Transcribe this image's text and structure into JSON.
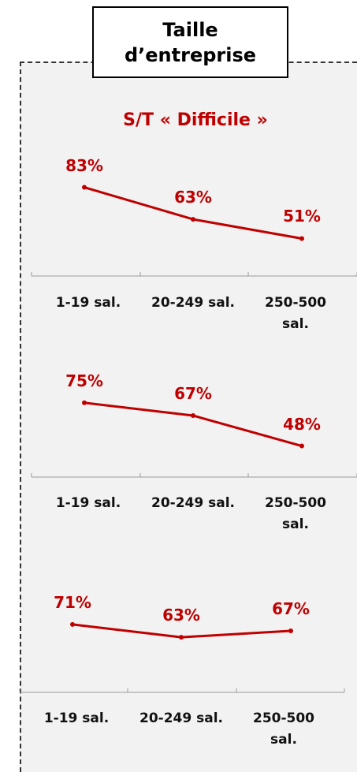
{
  "header": {
    "title": "Taille d’entreprise",
    "subtitle": "S/T « Difficile »"
  },
  "chart_data": [
    {
      "type": "line",
      "categories": [
        "1-19 sal.",
        "20-249 sal.",
        "250-500 sal."
      ],
      "values": [
        83,
        63,
        51
      ],
      "value_labels": [
        "83%",
        "63%",
        "51%"
      ],
      "color": "#c00000"
    },
    {
      "type": "line",
      "categories": [
        "1-19 sal.",
        "20-249 sal.",
        "250-500 sal."
      ],
      "values": [
        75,
        67,
        48
      ],
      "value_labels": [
        "75%",
        "67%",
        "48%"
      ],
      "color": "#c00000"
    },
    {
      "type": "line",
      "categories": [
        "1-19 sal.",
        "20-249 sal.",
        "250-500 sal."
      ],
      "values": [
        71,
        63,
        67
      ],
      "value_labels": [
        "71%",
        "63%",
        "67%"
      ],
      "color": "#c00000"
    }
  ]
}
